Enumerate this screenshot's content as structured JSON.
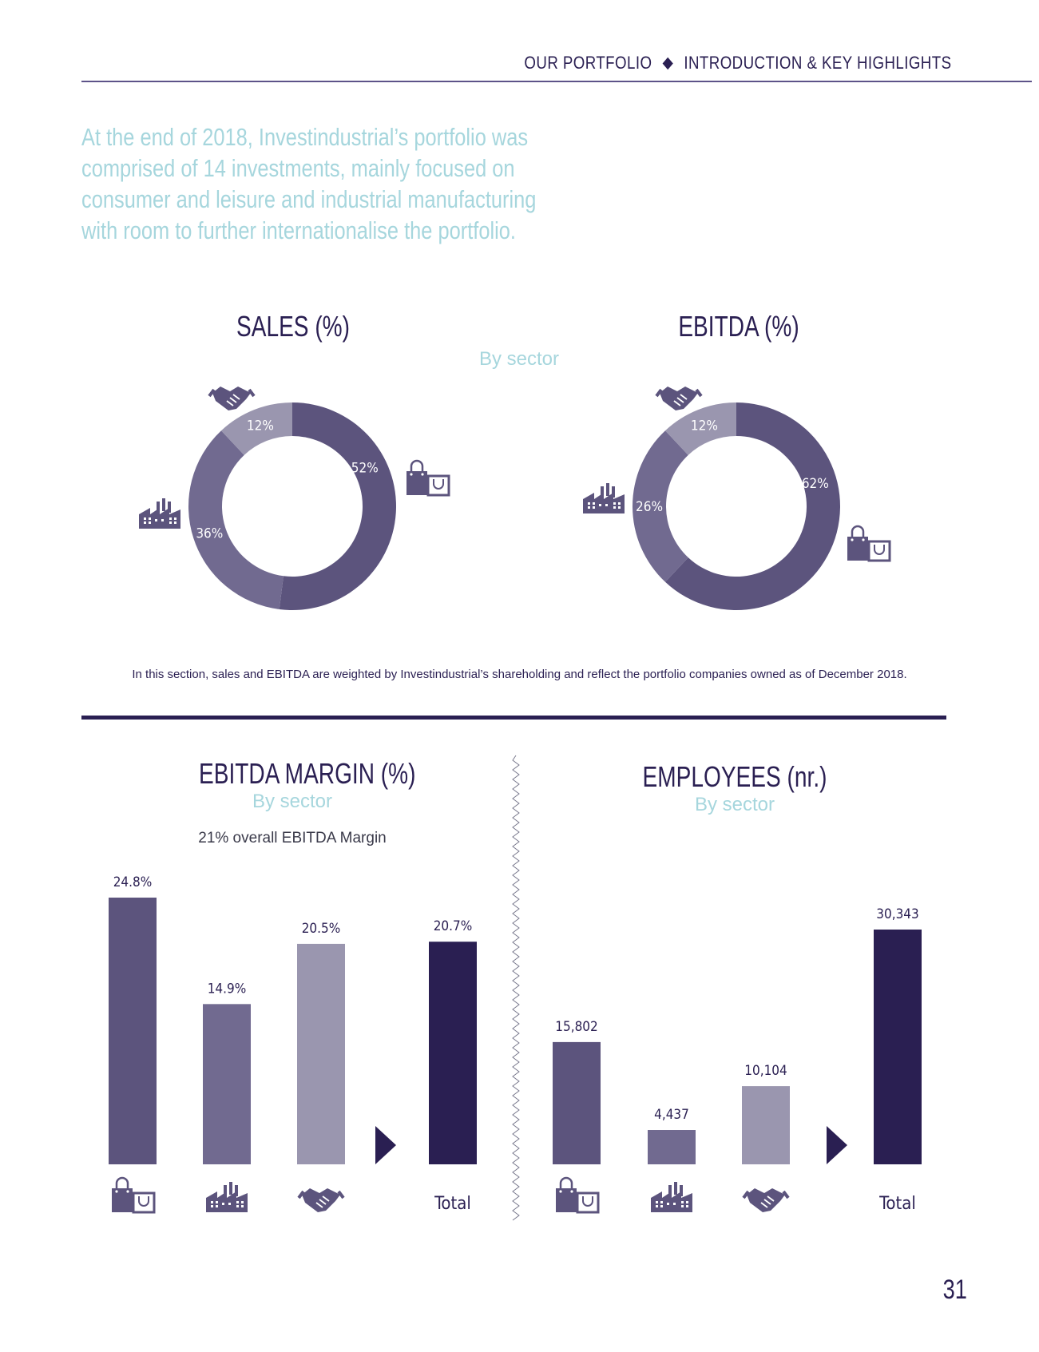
{
  "header": {
    "section": "OUR PORTFOLIO",
    "subsection": "INTRODUCTION & KEY HIGHLIGHTS"
  },
  "intro_lines": [
    "At the end of 2018, Investindustrial’s portfolio was",
    "comprised of 14 investments, mainly focused on",
    "consumer and leisure and industrial manufacturing",
    "with room to further internationalise the portfolio."
  ],
  "colors": {
    "consumer": "#5c547d",
    "industrial": "#716a90",
    "services": "#9a96af",
    "total": "#2a1f52",
    "accent": "#a6d6dd"
  },
  "donut_subtitle": "By sector",
  "footnote": "In this section, sales and EBITDA are weighted by Investindustrial’s shareholding and reflect the portfolio companies owned as of December 2018.",
  "margin_note": "21% overall EBITDA Margin",
  "page_number": "31",
  "chart_data": [
    {
      "type": "pie",
      "title": "SALES (%)",
      "slices": [
        {
          "icon": "shopping-bags-icon",
          "value": 52,
          "label": "52%"
        },
        {
          "icon": "factory-icon",
          "value": 36,
          "label": "36%"
        },
        {
          "icon": "handshake-icon",
          "value": 12,
          "label": "12%"
        }
      ]
    },
    {
      "type": "pie",
      "title": "EBITDA (%)",
      "slices": [
        {
          "icon": "shopping-bags-icon",
          "value": 62,
          "label": "62%"
        },
        {
          "icon": "factory-icon",
          "value": 26,
          "label": "26%"
        },
        {
          "icon": "handshake-icon",
          "value": 12,
          "label": "12%"
        }
      ]
    },
    {
      "type": "bar",
      "title": "EBITDA MARGIN (%)",
      "subtitle": "By sector",
      "categories": [
        "shopping-bags-icon",
        "factory-icon",
        "handshake-icon",
        "Total"
      ],
      "values": [
        24.8,
        14.9,
        20.5,
        20.7
      ],
      "labels": [
        "24.8%",
        "14.9%",
        "20.5%",
        "20.7%"
      ],
      "ylim": [
        0,
        24.8
      ]
    },
    {
      "type": "bar",
      "title": "EMPLOYEES (nr.)",
      "subtitle": "By sector",
      "categories": [
        "shopping-bags-icon",
        "factory-icon",
        "handshake-icon",
        "Total"
      ],
      "values": [
        15802,
        4437,
        10104,
        30343
      ],
      "labels": [
        "15,802",
        "4,437",
        "10,104",
        "30,343"
      ],
      "ylim": [
        0,
        30343
      ]
    }
  ]
}
